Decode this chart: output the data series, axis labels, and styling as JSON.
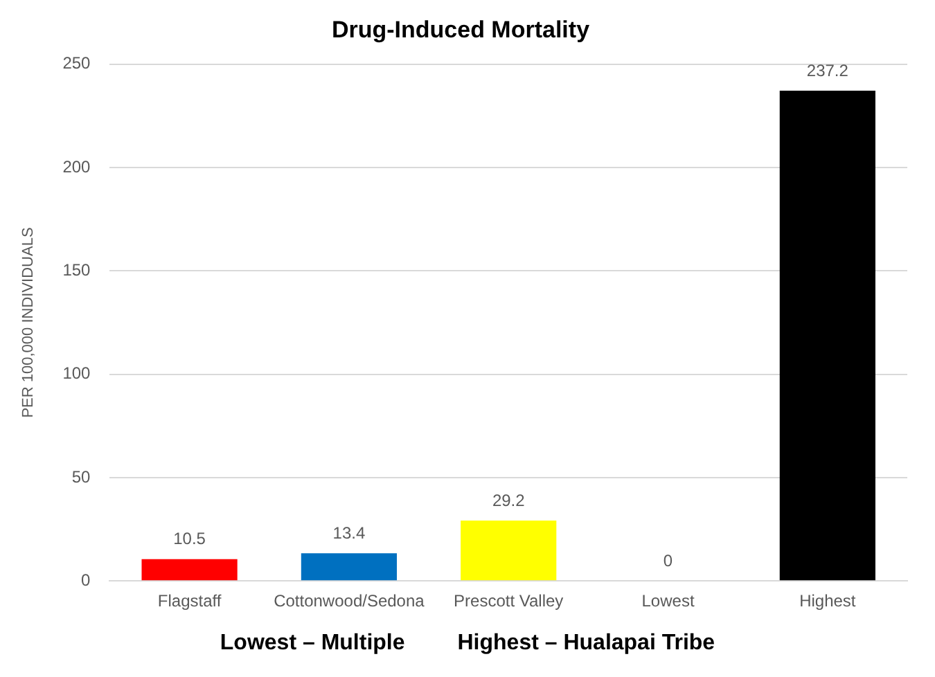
{
  "chart_data": {
    "type": "bar",
    "title": "Drug-Induced Mortality",
    "ylabel": "PER 100,000 INDIVIDUALS",
    "categories": [
      "Flagstaff",
      "Cottonwood/Sedona",
      "Prescott Valley",
      "Lowest",
      "Highest"
    ],
    "values": [
      10.5,
      13.4,
      29.2,
      0,
      237.2
    ],
    "colors": [
      "#ff0000",
      "#0070c0",
      "#ffff00",
      "#a5a5a5",
      "#000000"
    ],
    "ylim": [
      0,
      250
    ],
    "yticks": [
      0,
      50,
      100,
      150,
      200,
      250
    ],
    "grid": "y",
    "data_labels": true,
    "legend": false,
    "annotations": [
      "Lowest – Multiple",
      "Highest – Hualapai Tribe"
    ]
  }
}
